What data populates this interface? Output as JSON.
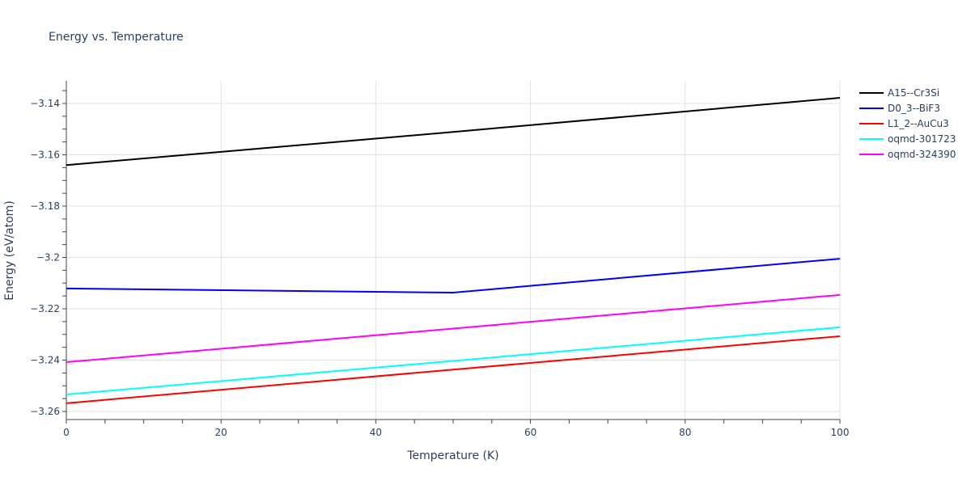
{
  "chart_data": {
    "type": "line",
    "title": "Energy vs. Temperature",
    "xlabel": "Temperature (K)",
    "ylabel": "Energy (eV/atom)",
    "xlim": [
      0,
      100
    ],
    "ylim": [
      -3.2635,
      -3.1315
    ],
    "xticks": [
      0,
      20,
      40,
      60,
      80,
      100
    ],
    "yticks": [
      -3.14,
      -3.16,
      -3.18,
      -3.2,
      -3.22,
      -3.24,
      -3.26
    ],
    "ytick_labels": [
      "−3.14",
      "−3.16",
      "−3.18",
      "−3.2",
      "−3.22",
      "−3.24",
      "−3.26"
    ],
    "grid": true,
    "legend_position": "right",
    "series": [
      {
        "name": "A15--Cr3Si",
        "color": "#000000",
        "x": [
          0,
          50,
          100
        ],
        "values": [
          -3.164,
          -3.1511,
          -3.1378
        ]
      },
      {
        "name": "D0_3--BiF3",
        "color": "#0000ff",
        "x": [
          0,
          50,
          100
        ],
        "values": [
          -3.2121,
          -3.2137,
          -3.2005
        ]
      },
      {
        "name": "L1_2--AuCu3",
        "color": "#ff0000",
        "x": [
          0,
          50,
          100
        ],
        "values": [
          -3.2568,
          -3.2437,
          -3.2307
        ]
      },
      {
        "name": "oqmd-301723",
        "color": "#00ffff",
        "x": [
          0,
          50,
          100
        ],
        "values": [
          -3.2534,
          -3.2403,
          -3.2272
        ]
      },
      {
        "name": "oqmd-324390",
        "color": "#ff00ff",
        "x": [
          0,
          50,
          100
        ],
        "values": [
          -3.2408,
          -3.2277,
          -3.2146
        ]
      }
    ]
  }
}
